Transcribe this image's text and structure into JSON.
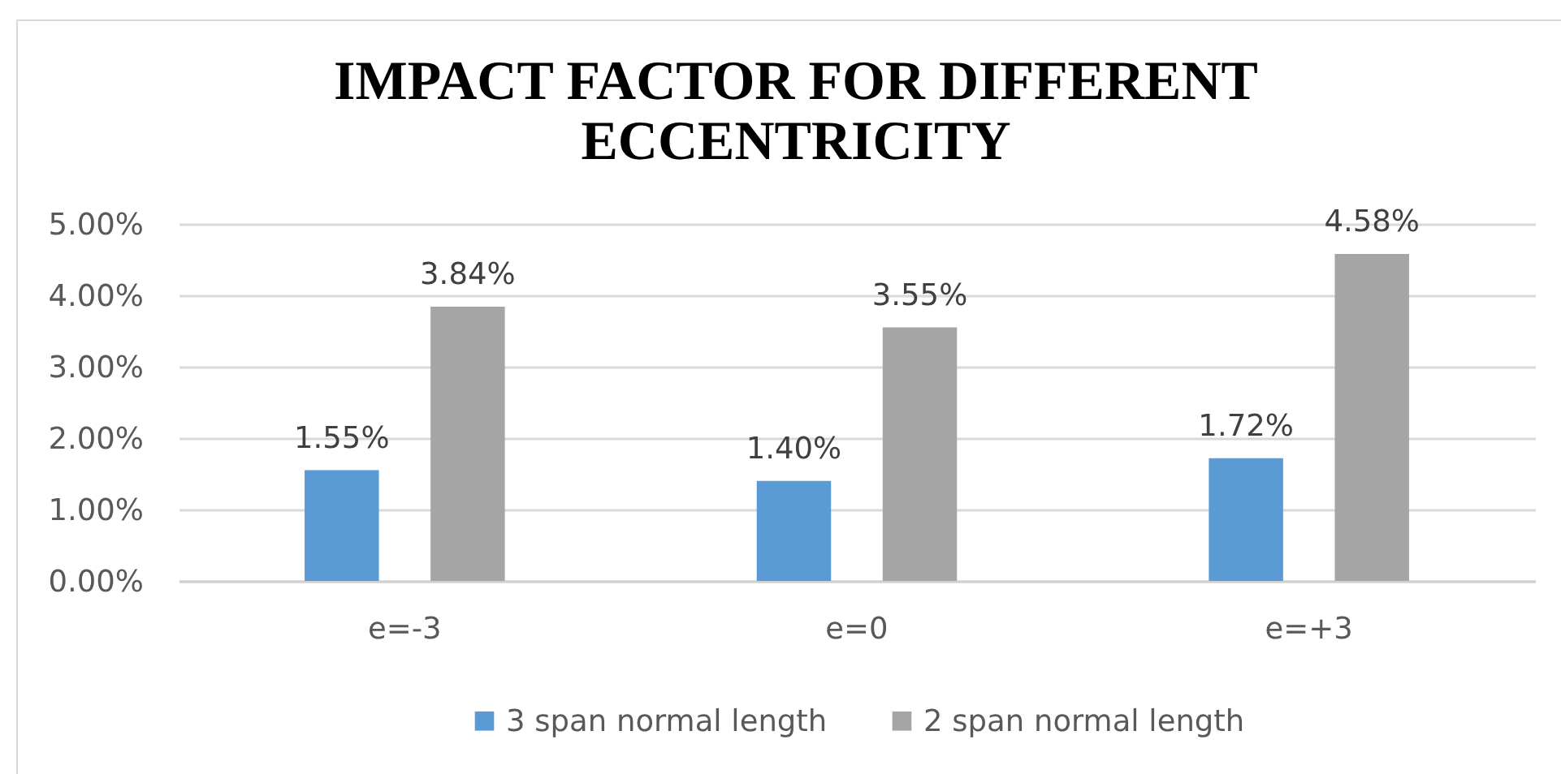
{
  "chart_data": {
    "type": "bar",
    "title": "IMPACT FACTOR FOR DIFFERENT ECCENTRICITY",
    "categories": [
      "e=-3",
      "e=0",
      "e=+3"
    ],
    "series": [
      {
        "name": "3 span normal length",
        "color": "#5b9bd5",
        "values": [
          1.55,
          1.4,
          1.72
        ],
        "value_labels": [
          "1.55%",
          "1.40%",
          "1.72%"
        ]
      },
      {
        "name": "2 span normal length",
        "color": "#a5a5a5",
        "values": [
          3.84,
          3.55,
          4.58
        ],
        "value_labels": [
          "3.84%",
          "3.55%",
          "4.58%"
        ]
      }
    ],
    "ylim": [
      0,
      5
    ],
    "yticks": [
      {
        "value": 0,
        "label": "0.00%"
      },
      {
        "value": 1,
        "label": "1.00%"
      },
      {
        "value": 2,
        "label": "2.00%"
      },
      {
        "value": 3,
        "label": "3.00%"
      },
      {
        "value": 4,
        "label": "4.00%"
      },
      {
        "value": 5,
        "label": "5.00%"
      }
    ],
    "grid": "y",
    "legend": "bottom"
  }
}
